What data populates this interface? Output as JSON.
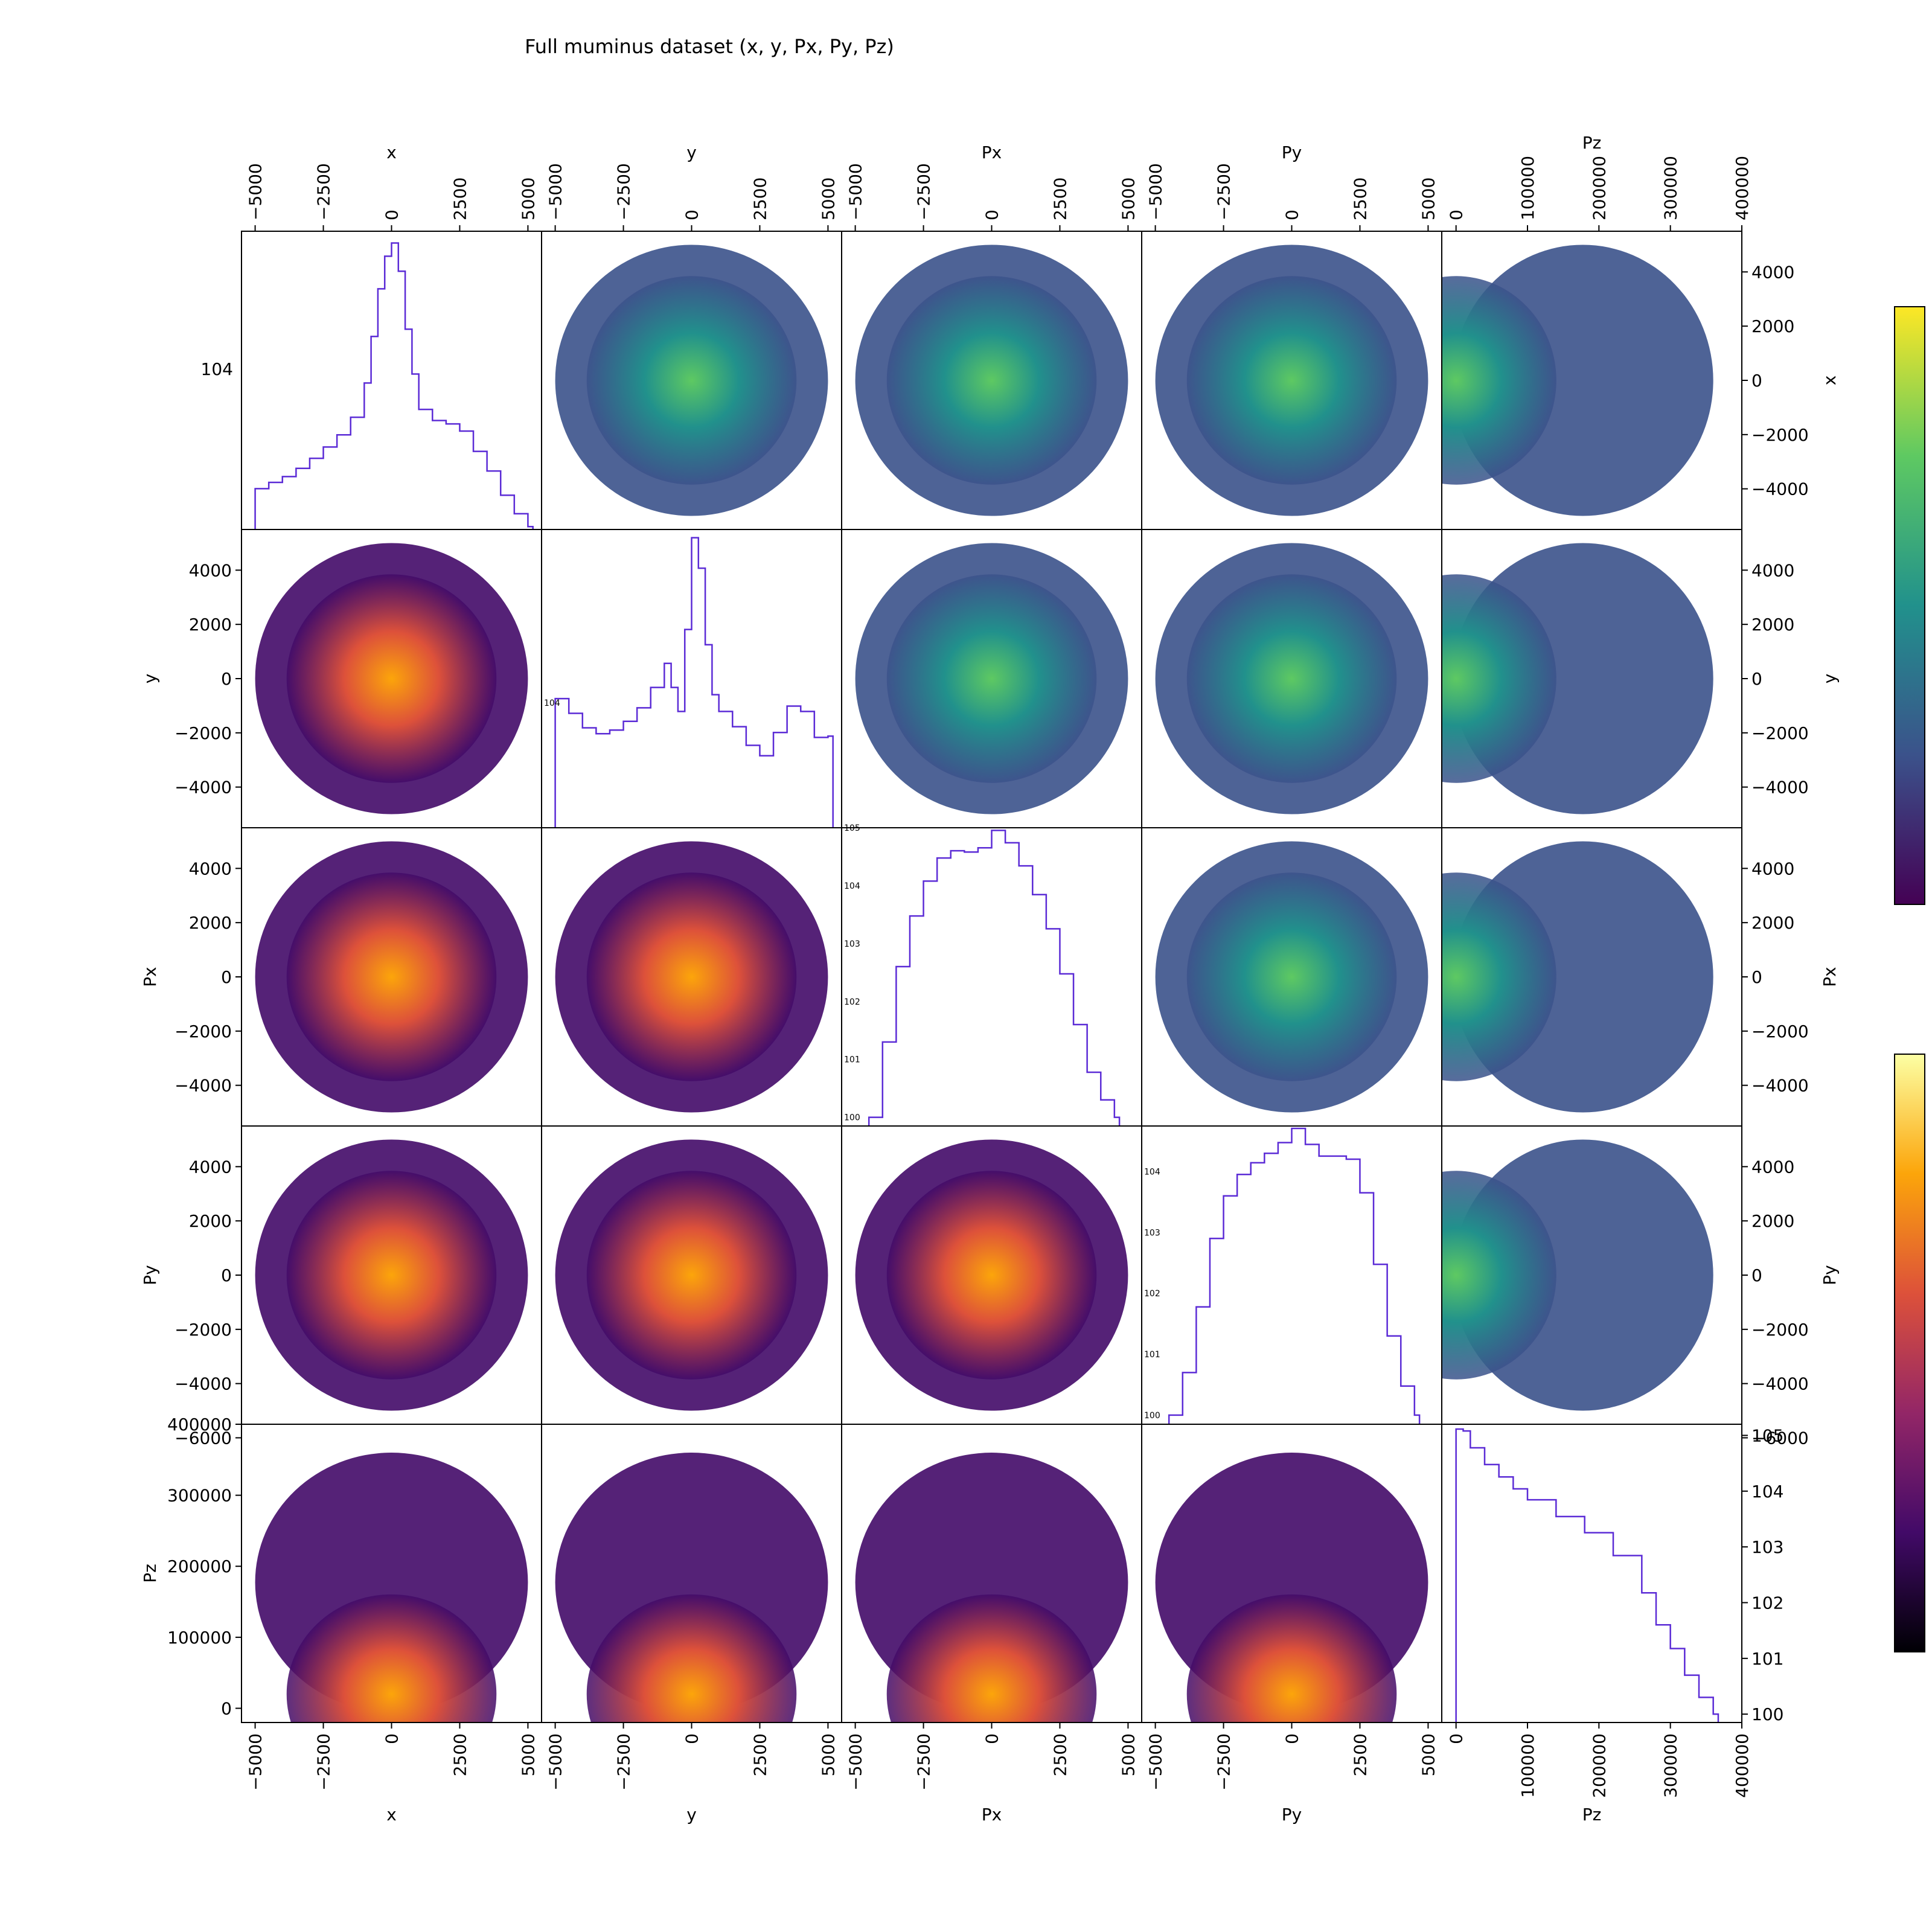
{
  "title": "Full muminus dataset (x, y, Px, Py, Pz)",
  "chart_data": {
    "type": "pairplot",
    "title": "Full muminus dataset (x, y, Px, Py, Pz)",
    "variables": [
      "x",
      "y",
      "Px",
      "Py",
      "Pz"
    ],
    "ranges": {
      "x": [
        -5500,
        5500
      ],
      "y": [
        -5500,
        5500
      ],
      "Px": [
        -5500,
        5500
      ],
      "Py": [
        -5500,
        5500
      ],
      "Pz": [
        -20000,
        400000
      ]
    },
    "ticks": {
      "x": [
        -5000,
        -2500,
        0,
        2500,
        5000
      ],
      "y": [
        -5000,
        -2500,
        0,
        2500,
        5000
      ],
      "Px": [
        -5000,
        -2500,
        0,
        2500,
        5000
      ],
      "Py": [
        -5000,
        -2500,
        0,
        2500,
        5000
      ],
      "Pz": [
        0,
        100000,
        200000,
        300000,
        400000
      ]
    },
    "tick_labels": {
      "x": [
        "−5000",
        "−2500",
        "0",
        "2500",
        "5000"
      ],
      "y": [
        "−5000",
        "−2500",
        "0",
        "2500",
        "5000"
      ],
      "Px": [
        "−5000",
        "−2500",
        "0",
        "2500",
        "5000"
      ],
      "Py": [
        "−5000",
        "−2500",
        "0",
        "2500",
        "5000"
      ],
      "Pz": [
        "0",
        "100000",
        "200000",
        "300000",
        "400000"
      ]
    },
    "right_axis_ticks": {
      "x": [
        "4000",
        "2000",
        "0",
        "−2000",
        "−4000"
      ],
      "y": [
        "4000",
        "2000",
        "0",
        "−2000",
        "−4000"
      ],
      "Px": [
        "4000",
        "2000",
        "0",
        "−2000",
        "−4000"
      ],
      "Py": [
        "4000",
        "2000",
        "0",
        "−2000",
        "−4000",
        "−6000"
      ],
      "Pz": [
        "10^5",
        "10^4",
        "10^3",
        "10^2",
        "10^1",
        "10^0"
      ]
    },
    "left_axis_ticks": {
      "y": [
        "4000",
        "2000",
        "0",
        "−2000",
        "−4000"
      ],
      "Px": [
        "4000",
        "2000",
        "0",
        "−2000",
        "−4000"
      ],
      "Py": [
        "4000",
        "2000",
        "0",
        "−2000",
        "−4000",
        "−6000"
      ],
      "Pz": [
        "400000",
        "300000",
        "200000",
        "100000",
        "0"
      ]
    },
    "diagonal_hist_tick_labels": {
      "x": [
        "10^4"
      ],
      "y": [
        "10^4"
      ],
      "Px": [
        "10^5",
        "10^4",
        "10^3",
        "10^2",
        "10^1",
        "10^0"
      ],
      "Py": [
        "10^4",
        "10^3",
        "10^2",
        "10^1",
        "10^0"
      ]
    },
    "histograms": {
      "x": {
        "scale": "log",
        "ylim_log10": [
          3.35,
          4.58
        ],
        "bins": [
          -5000,
          -4500,
          -4000,
          -3500,
          -3000,
          -2500,
          -2000,
          -1500,
          -1000,
          -750,
          -500,
          -250,
          0,
          250,
          500,
          750,
          1000,
          1500,
          2000,
          2500,
          3000,
          3500,
          4000,
          4500,
          5000
        ],
        "counts": [
          3300,
          3500,
          3700,
          4000,
          4400,
          4900,
          5500,
          6500,
          9000,
          14000,
          22000,
          30000,
          34000,
          26000,
          15000,
          9800,
          7000,
          6300,
          6100,
          5700,
          4700,
          3900,
          3100,
          2600,
          2300
        ]
      },
      "y": {
        "scale": "log",
        "ylim_log10": [
          3.35,
          4.9
        ],
        "bins": [
          -5000,
          -4500,
          -4000,
          -3500,
          -3000,
          -2500,
          -2000,
          -1500,
          -1000,
          -750,
          -500,
          -250,
          0,
          250,
          500,
          750,
          1000,
          1500,
          2000,
          2500,
          3000,
          3500,
          4000,
          4500,
          5000
        ],
        "counts": [
          10500,
          8800,
          7400,
          6900,
          7200,
          8000,
          9400,
          12000,
          16000,
          12000,
          9000,
          24000,
          72000,
          50000,
          20000,
          11000,
          9000,
          7500,
          6000,
          5300,
          7000,
          9600,
          9000,
          6600,
          6700
        ]
      },
      "Px": {
        "scale": "log",
        "ylim_log10": [
          -0.15,
          5.0
        ],
        "bins": [
          -4500,
          -4000,
          -3500,
          -3000,
          -2500,
          -2000,
          -1500,
          -1000,
          -500,
          0,
          500,
          1000,
          1500,
          2000,
          2500,
          3000,
          3500,
          4000,
          4500
        ],
        "counts": [
          1,
          20,
          400,
          3000,
          12000,
          30000,
          40000,
          38000,
          45000,
          90000,
          55000,
          22000,
          7000,
          1800,
          300,
          40,
          6,
          2,
          1
        ]
      },
      "Py": {
        "scale": "log",
        "ylim_log10": [
          -0.15,
          4.75
        ],
        "bins": [
          -4500,
          -4000,
          -3500,
          -3000,
          -2500,
          -2000,
          -1500,
          -1000,
          -500,
          0,
          500,
          1000,
          1500,
          2000,
          2500,
          3000,
          3500,
          4000,
          4500
        ],
        "counts": [
          1,
          5,
          60,
          800,
          4000,
          9000,
          14000,
          20000,
          30000,
          55000,
          28000,
          18000,
          18000,
          16000,
          4500,
          300,
          20,
          3,
          1
        ]
      },
      "Pz": {
        "scale": "log",
        "ylim_log10": [
          -0.15,
          5.2
        ],
        "bins": [
          0,
          10000,
          20000,
          40000,
          60000,
          80000,
          100000,
          140000,
          180000,
          220000,
          260000,
          280000,
          300000,
          320000,
          340000,
          360000
        ],
        "counts": [
          130000,
          120000,
          60000,
          30000,
          18000,
          11000,
          7000,
          3500,
          1800,
          700,
          150,
          40,
          15,
          5,
          2,
          1
        ]
      }
    },
    "density_panels": [
      {
        "xvar": "y",
        "yvar": "x",
        "colormap": "viridis"
      },
      {
        "xvar": "Px",
        "yvar": "x",
        "colormap": "viridis"
      },
      {
        "xvar": "Py",
        "yvar": "x",
        "colormap": "viridis"
      },
      {
        "xvar": "Pz",
        "yvar": "x",
        "colormap": "viridis"
      },
      {
        "xvar": "Px",
        "yvar": "y",
        "colormap": "viridis"
      },
      {
        "xvar": "Py",
        "yvar": "y",
        "colormap": "viridis"
      },
      {
        "xvar": "Pz",
        "yvar": "y",
        "colormap": "viridis"
      },
      {
        "xvar": "Py",
        "yvar": "Px",
        "colormap": "viridis"
      },
      {
        "xvar": "Pz",
        "yvar": "Px",
        "colormap": "viridis"
      },
      {
        "xvar": "Pz",
        "yvar": "Py",
        "colormap": "viridis"
      },
      {
        "xvar": "x",
        "yvar": "y",
        "colormap": "inferno"
      },
      {
        "xvar": "x",
        "yvar": "Px",
        "colormap": "inferno"
      },
      {
        "xvar": "y",
        "yvar": "Px",
        "colormap": "inferno"
      },
      {
        "xvar": "x",
        "yvar": "Py",
        "colormap": "inferno"
      },
      {
        "xvar": "y",
        "yvar": "Py",
        "colormap": "inferno"
      },
      {
        "xvar": "Px",
        "yvar": "Py",
        "colormap": "inferno"
      },
      {
        "xvar": "x",
        "yvar": "Pz",
        "colormap": "inferno"
      },
      {
        "xvar": "y",
        "yvar": "Pz",
        "colormap": "inferno"
      },
      {
        "xvar": "Px",
        "yvar": "Pz",
        "colormap": "inferno"
      },
      {
        "xvar": "Py",
        "yvar": "Pz",
        "colormap": "inferno"
      }
    ],
    "colorbars": [
      {
        "colormap": "viridis",
        "scale": "log",
        "position": "upper-right"
      },
      {
        "colormap": "inferno",
        "scale": "log",
        "position": "lower-right"
      }
    ],
    "colors": {
      "histogram_line": "#5b2bd6",
      "frame": "#000000",
      "background": "#ffffff"
    }
  }
}
